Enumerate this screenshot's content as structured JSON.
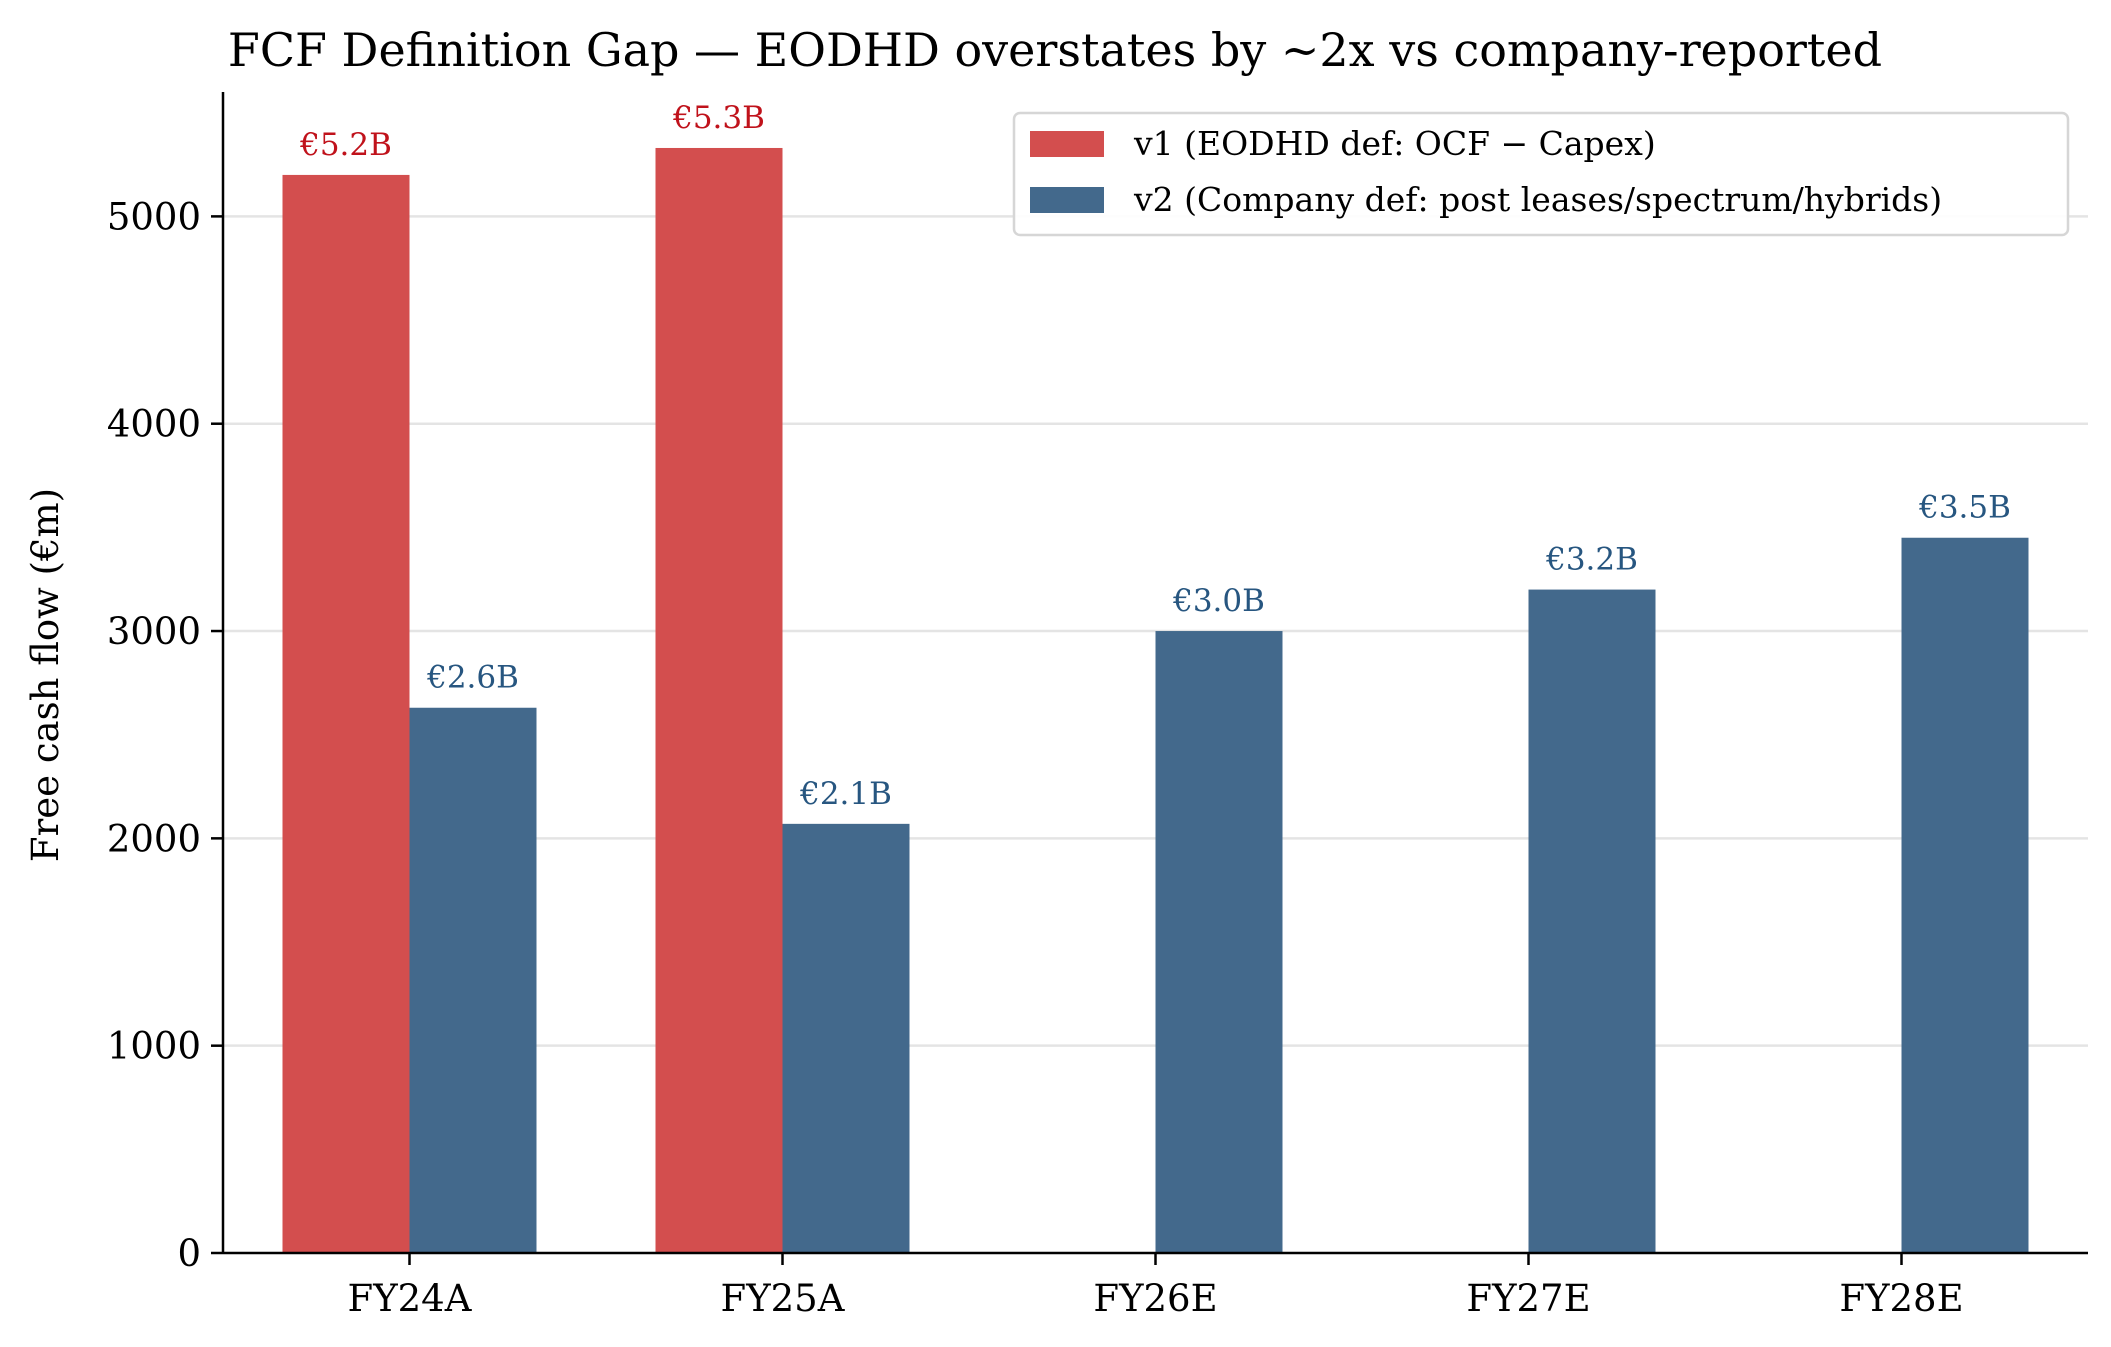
{
  "chart_data": {
    "type": "bar",
    "title": "FCF Definition Gap — EODHD overstates by ~2x vs company-reported",
    "xlabel": "",
    "ylabel": "Free cash flow (€m)",
    "categories": [
      "FY24A",
      "FY25A",
      "FY26E",
      "FY27E",
      "FY28E"
    ],
    "ylim": [
      0,
      5600
    ],
    "yticks": [
      0,
      1000,
      2000,
      3000,
      4000,
      5000
    ],
    "grid": "horizontal",
    "legend_position": "top-right",
    "series": [
      {
        "name": "v1 (EODHD def: OCF − Capex)",
        "color": "#d34e4e",
        "label_color": "#c0121b",
        "values": [
          5200,
          5330,
          null,
          null,
          null
        ],
        "labels": [
          "€5.2B",
          "€5.3B",
          null,
          null,
          null
        ]
      },
      {
        "name": "v2 (Company def: post leases/spectrum/hybrids)",
        "color": "#43698c",
        "label_color": "#275680",
        "values": [
          2630,
          2070,
          3000,
          3200,
          3450
        ],
        "labels": [
          "€2.6B",
          "€2.1B",
          "€3.0B",
          "€3.2B",
          "€3.5B"
        ]
      }
    ]
  }
}
